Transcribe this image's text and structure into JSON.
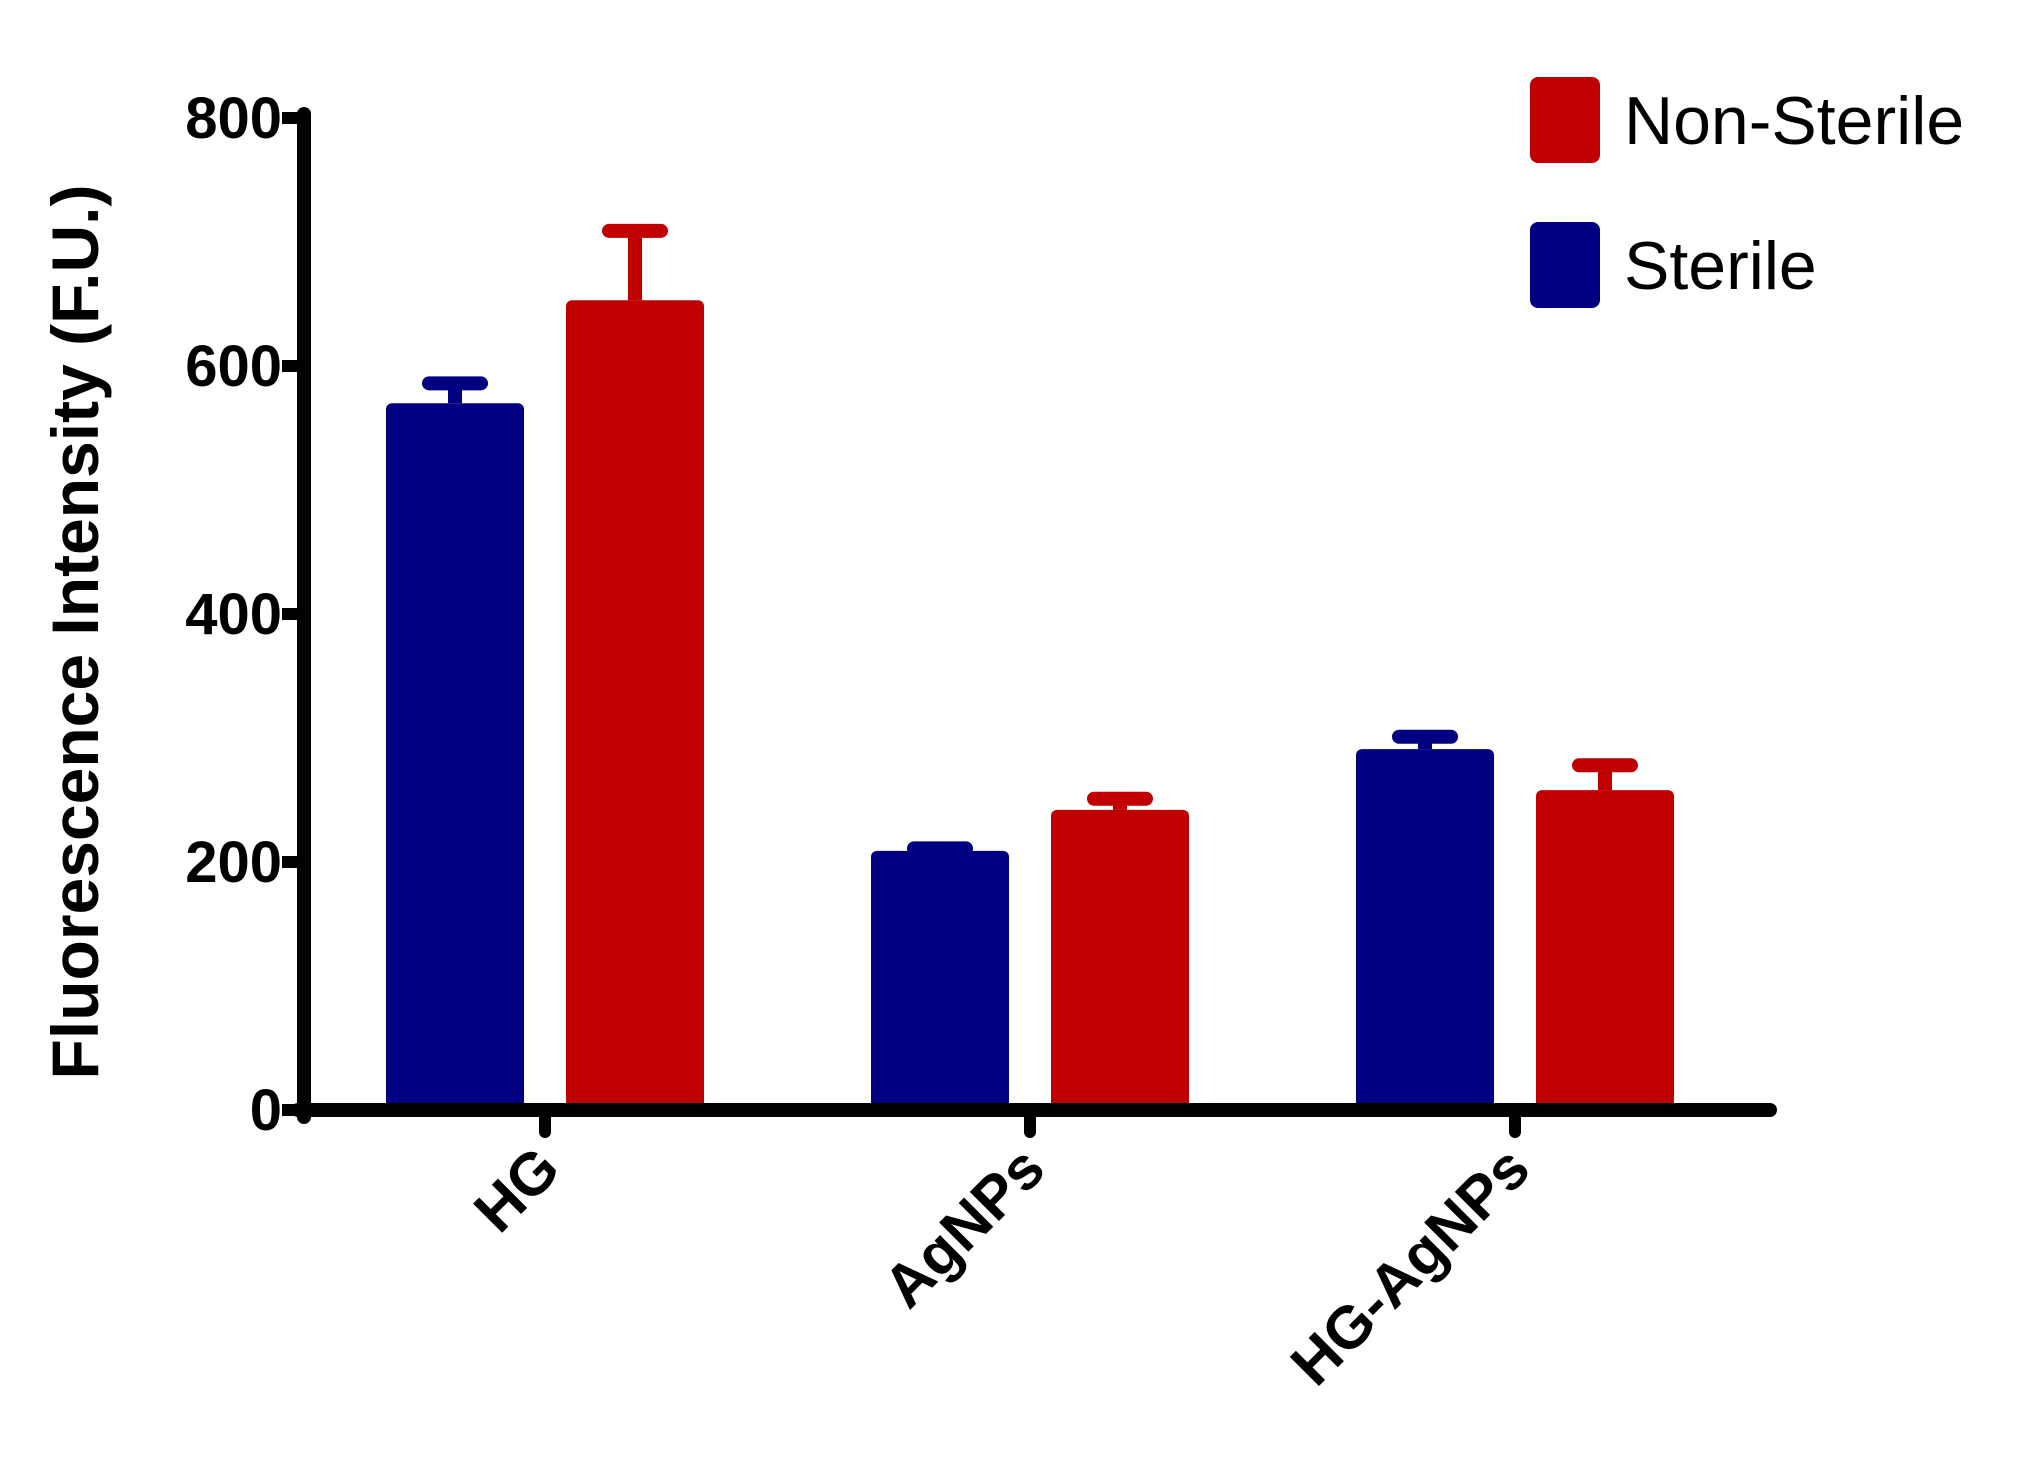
{
  "chart_data": {
    "type": "bar",
    "title": "",
    "xlabel": "",
    "ylabel": "Fluorescence Intensity (F.U.)",
    "ylim": [
      0,
      800
    ],
    "yticks": [
      0,
      200,
      400,
      600,
      800
    ],
    "categories": [
      "HG",
      "AgNPs",
      "HG-AgNPs"
    ],
    "series": [
      {
        "name": "Sterile",
        "color": "#000080",
        "values": [
          570,
          209,
          291
        ],
        "errors": [
          16,
          2,
          10
        ]
      },
      {
        "name": "Non-Sterile",
        "color": "#C00000",
        "values": [
          653,
          242,
          258
        ],
        "errors": [
          56,
          9,
          20
        ]
      }
    ],
    "legend": {
      "position": "top-right",
      "order": [
        "Non-Sterile",
        "Sterile"
      ]
    },
    "grid": false
  }
}
